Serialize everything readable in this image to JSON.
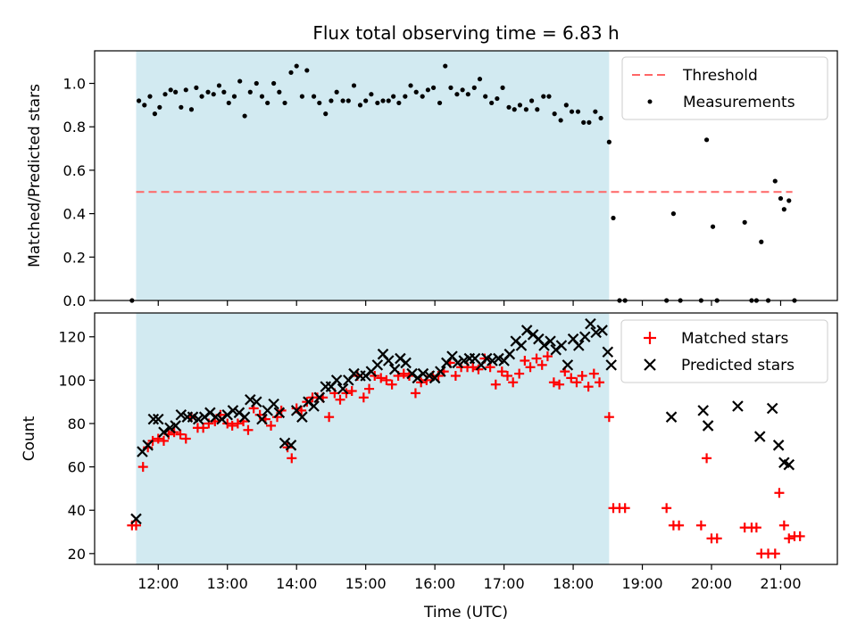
{
  "title": "Flux total observing time = 6.83 h",
  "xlabel": "Time (UTC)",
  "top_ylabel": "Matched/Predicted stars",
  "bottom_ylabel": "Count",
  "x_ticks": [
    "12:00",
    "13:00",
    "14:00",
    "15:00",
    "16:00",
    "17:00",
    "18:00",
    "19:00",
    "20:00",
    "21:00"
  ],
  "top_legend": {
    "threshold": "Threshold",
    "measurements": "Measurements"
  },
  "bottom_legend": {
    "matched": "Matched stars",
    "predicted": "Predicted stars"
  },
  "colors": {
    "observing_band": "#add8e6",
    "threshold": "#ff6666",
    "measurements": "#000000",
    "matched": "#ff0000",
    "predicted": "#000000"
  },
  "chart_data": [
    {
      "type": "scatter",
      "title": "Flux total observing time = 6.83 h",
      "ylabel": "Matched/Predicted stars",
      "x_unit": "hours UTC",
      "xlim": [
        11.08,
        21.82
      ],
      "ylim": [
        0.0,
        1.15
      ],
      "yticks": [
        0.0,
        0.2,
        0.4,
        0.6,
        0.8,
        1.0
      ],
      "observing_window": [
        11.68,
        18.52
      ],
      "legend_position": "top-right",
      "threshold": {
        "name": "Threshold",
        "value": 0.5,
        "x_range": [
          11.68,
          21.17
        ],
        "style": "dashed"
      },
      "series": [
        {
          "name": "Measurements",
          "x": [
            11.62,
            11.72,
            11.8,
            11.88,
            11.95,
            12.02,
            12.1,
            12.18,
            12.25,
            12.33,
            12.4,
            12.48,
            12.55,
            12.63,
            12.72,
            12.8,
            12.88,
            12.95,
            13.02,
            13.1,
            13.18,
            13.25,
            13.33,
            13.42,
            13.5,
            13.58,
            13.67,
            13.75,
            13.83,
            13.92,
            14.0,
            14.08,
            14.15,
            14.25,
            14.33,
            14.42,
            14.5,
            14.58,
            14.67,
            14.75,
            14.83,
            14.92,
            15.0,
            15.08,
            15.17,
            15.25,
            15.33,
            15.4,
            15.48,
            15.57,
            15.65,
            15.73,
            15.82,
            15.9,
            15.98,
            16.07,
            16.15,
            16.23,
            16.32,
            16.4,
            16.48,
            16.57,
            16.65,
            16.73,
            16.82,
            16.9,
            16.98,
            17.07,
            17.15,
            17.23,
            17.32,
            17.4,
            17.48,
            17.57,
            17.65,
            17.73,
            17.82,
            17.9,
            17.98,
            18.07,
            18.15,
            18.23,
            18.32,
            18.4,
            18.52,
            18.58,
            18.67,
            18.75,
            19.35,
            19.45,
            19.55,
            19.85,
            19.93,
            20.02,
            20.08,
            20.48,
            20.58,
            20.65,
            20.72,
            20.82,
            20.92,
            21.0,
            21.05,
            21.12,
            21.2
          ],
          "y": [
            0.0,
            0.92,
            0.9,
            0.94,
            0.86,
            0.89,
            0.95,
            0.97,
            0.96,
            0.89,
            0.97,
            0.88,
            0.98,
            0.94,
            0.96,
            0.95,
            0.99,
            0.96,
            0.91,
            0.94,
            1.01,
            0.85,
            0.96,
            1.0,
            0.94,
            0.91,
            1.0,
            0.96,
            0.91,
            1.05,
            1.08,
            0.94,
            1.06,
            0.94,
            0.91,
            0.86,
            0.92,
            0.96,
            0.92,
            0.92,
            0.99,
            0.9,
            0.92,
            0.95,
            0.91,
            0.92,
            0.92,
            0.94,
            0.91,
            0.94,
            0.99,
            0.96,
            0.94,
            0.97,
            0.98,
            0.91,
            1.08,
            0.98,
            0.95,
            0.97,
            0.95,
            0.98,
            1.02,
            0.94,
            0.91,
            0.93,
            0.98,
            0.89,
            0.88,
            0.9,
            0.88,
            0.92,
            0.88,
            0.94,
            0.94,
            0.86,
            0.83,
            0.9,
            0.87,
            0.87,
            0.82,
            0.82,
            0.87,
            0.84,
            0.73,
            0.38,
            0.0,
            0.0,
            0.0,
            0.4,
            0.0,
            0.0,
            0.74,
            0.34,
            0.0,
            0.36,
            0.0,
            0.0,
            0.27,
            0.0,
            0.55,
            0.47,
            0.42,
            0.46,
            0.0
          ]
        }
      ]
    },
    {
      "type": "scatter",
      "xlabel": "Time (UTC)",
      "ylabel": "Count",
      "x_unit": "hours UTC",
      "xlim": [
        11.08,
        21.82
      ],
      "ylim": [
        15,
        131
      ],
      "yticks": [
        20,
        40,
        60,
        80,
        100,
        120
      ],
      "xticks": [
        12,
        13,
        14,
        15,
        16,
        17,
        18,
        19,
        20,
        21
      ],
      "observing_window": [
        11.68,
        18.52
      ],
      "legend_position": "top-right",
      "series": [
        {
          "name": "Matched stars",
          "marker": "plus",
          "x": [
            11.62,
            11.68,
            11.78,
            11.85,
            11.92,
            12.0,
            12.08,
            12.15,
            12.23,
            12.32,
            12.4,
            12.48,
            12.57,
            12.65,
            12.73,
            12.82,
            12.9,
            13.0,
            13.07,
            13.15,
            13.23,
            13.3,
            13.38,
            13.47,
            13.55,
            13.63,
            13.72,
            13.78,
            13.87,
            13.93,
            14.0,
            14.07,
            14.15,
            14.23,
            14.3,
            14.38,
            14.47,
            14.55,
            14.63,
            14.72,
            14.8,
            14.88,
            14.97,
            15.05,
            15.13,
            15.22,
            15.3,
            15.38,
            15.47,
            15.55,
            15.63,
            15.72,
            15.8,
            15.88,
            15.97,
            16.05,
            16.13,
            16.22,
            16.3,
            16.38,
            16.47,
            16.55,
            16.63,
            16.72,
            16.8,
            16.88,
            16.97,
            17.05,
            17.13,
            17.22,
            17.3,
            17.38,
            17.47,
            17.55,
            17.63,
            17.72,
            17.8,
            17.88,
            17.97,
            18.05,
            18.13,
            18.22,
            18.3,
            18.38,
            18.52,
            18.58,
            18.67,
            18.75,
            19.35,
            19.45,
            19.53,
            19.85,
            19.93,
            20.0,
            20.08,
            20.48,
            20.58,
            20.65,
            20.72,
            20.82,
            20.92,
            20.98,
            21.05,
            21.12,
            21.2,
            21.28
          ],
          "y": [
            33,
            33,
            60,
            69,
            72,
            73,
            72,
            75,
            76,
            75,
            73,
            83,
            78,
            78,
            80,
            81,
            84,
            80,
            79,
            80,
            81,
            77,
            87,
            84,
            82,
            79,
            83,
            86,
            69,
            64,
            87,
            86,
            90,
            92,
            92,
            92,
            83,
            94,
            91,
            94,
            95,
            102,
            92,
            96,
            102,
            101,
            100,
            98,
            102,
            103,
            102,
            94,
            99,
            100,
            102,
            102,
            104,
            108,
            102,
            106,
            106,
            106,
            105,
            110,
            106,
            98,
            104,
            102,
            99,
            103,
            109,
            106,
            110,
            107,
            111,
            99,
            98,
            104,
            101,
            99,
            102,
            97,
            103,
            99,
            83,
            41,
            41,
            41,
            41,
            33,
            33,
            33,
            64,
            27,
            27,
            32,
            32,
            32,
            20,
            20,
            20,
            48,
            33,
            27,
            28,
            28
          ]
        },
        {
          "name": "Predicted stars",
          "marker": "x",
          "x": [
            11.68,
            11.77,
            11.85,
            11.93,
            12.0,
            12.08,
            12.17,
            12.25,
            12.33,
            12.42,
            12.5,
            12.58,
            12.67,
            12.75,
            12.83,
            12.92,
            13.0,
            13.08,
            13.17,
            13.25,
            13.33,
            13.42,
            13.5,
            13.58,
            13.67,
            13.75,
            13.83,
            13.92,
            14.0,
            14.08,
            14.17,
            14.25,
            14.33,
            14.42,
            14.5,
            14.58,
            14.67,
            14.75,
            14.83,
            14.92,
            15.0,
            15.08,
            15.17,
            15.25,
            15.33,
            15.42,
            15.5,
            15.58,
            15.67,
            15.75,
            15.83,
            15.92,
            16.0,
            16.08,
            16.17,
            16.25,
            16.33,
            16.42,
            16.5,
            16.58,
            16.67,
            16.75,
            16.83,
            16.92,
            17.0,
            17.08,
            17.17,
            17.25,
            17.33,
            17.42,
            17.5,
            17.58,
            17.67,
            17.75,
            17.83,
            17.92,
            18.0,
            18.08,
            18.17,
            18.25,
            18.33,
            18.42,
            18.5,
            18.55,
            19.42,
            19.88,
            19.95,
            20.38,
            20.7,
            20.88,
            20.97,
            21.05,
            21.12
          ],
          "y": [
            36,
            67,
            70,
            82,
            82,
            76,
            78,
            79,
            84,
            83,
            83,
            82,
            83,
            85,
            83,
            82,
            84,
            86,
            85,
            83,
            91,
            90,
            82,
            86,
            89,
            85,
            71,
            70,
            86,
            83,
            90,
            88,
            92,
            97,
            97,
            100,
            96,
            100,
            103,
            102,
            102,
            104,
            107,
            112,
            109,
            105,
            110,
            108,
            103,
            101,
            103,
            102,
            101,
            104,
            108,
            111,
            108,
            109,
            110,
            110,
            107,
            110,
            109,
            110,
            109,
            112,
            118,
            116,
            123,
            121,
            119,
            116,
            118,
            114,
            116,
            107,
            119,
            116,
            120,
            126,
            122,
            123,
            113,
            107,
            83,
            86,
            79,
            88,
            74,
            87,
            70,
            62,
            61
          ]
        }
      ]
    }
  ]
}
